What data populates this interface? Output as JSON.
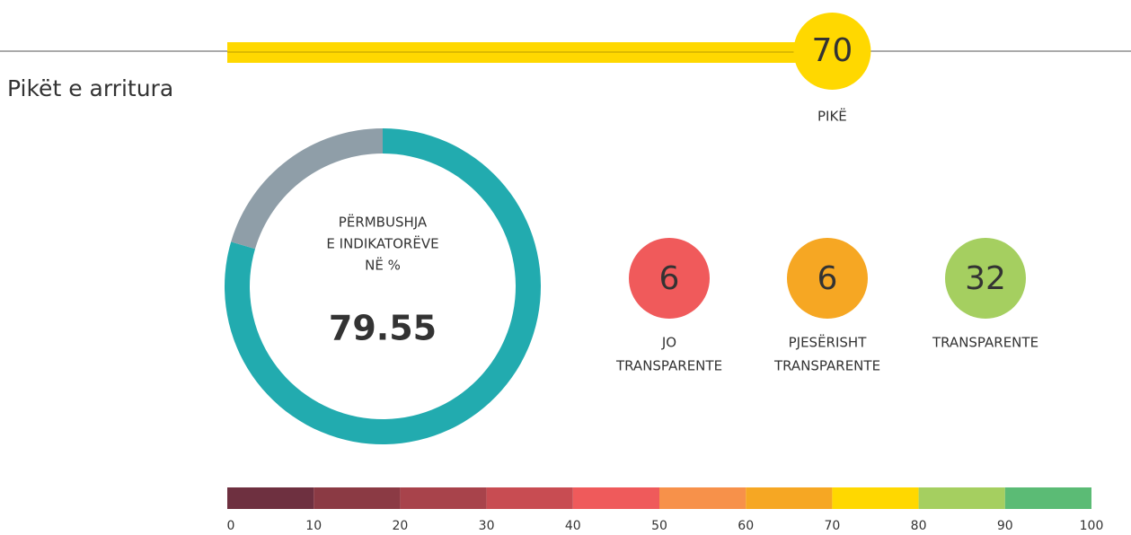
{
  "title": "Pikët e arritura",
  "score": {
    "value": 70,
    "label": "PIKË",
    "color": "#ffd800"
  },
  "chart_data": {
    "type": "pie",
    "donut": true,
    "center_text": [
      "PËRMBUSHJA",
      "E INDIKATORËVE",
      "NË %"
    ],
    "values": [
      79.55,
      20.45
    ],
    "colors": [
      "#22abaf",
      "#8f9ea8"
    ]
  },
  "indicators": [
    {
      "value": 6,
      "label": [
        "JO",
        "TRANSPARENTE"
      ],
      "color": "#f05a5b"
    },
    {
      "value": 6,
      "label": [
        "PJESËRISHT",
        "TRANSPARENTE"
      ],
      "color": "#f6a723"
    },
    {
      "value": 32,
      "label": [
        "TRANSPARENTE"
      ],
      "color": "#a5cf60"
    }
  ],
  "scale": {
    "xlim": [
      0,
      100
    ],
    "ticks": [
      0,
      10,
      20,
      30,
      40,
      50,
      60,
      70,
      80,
      90,
      100
    ],
    "colors": [
      "#6e3040",
      "#8b3a44",
      "#a8434b",
      "#c84c52",
      "#ef5a5b",
      "#f7914a",
      "#f6a723",
      "#ffd800",
      "#a5cf60",
      "#5bbb75"
    ]
  }
}
